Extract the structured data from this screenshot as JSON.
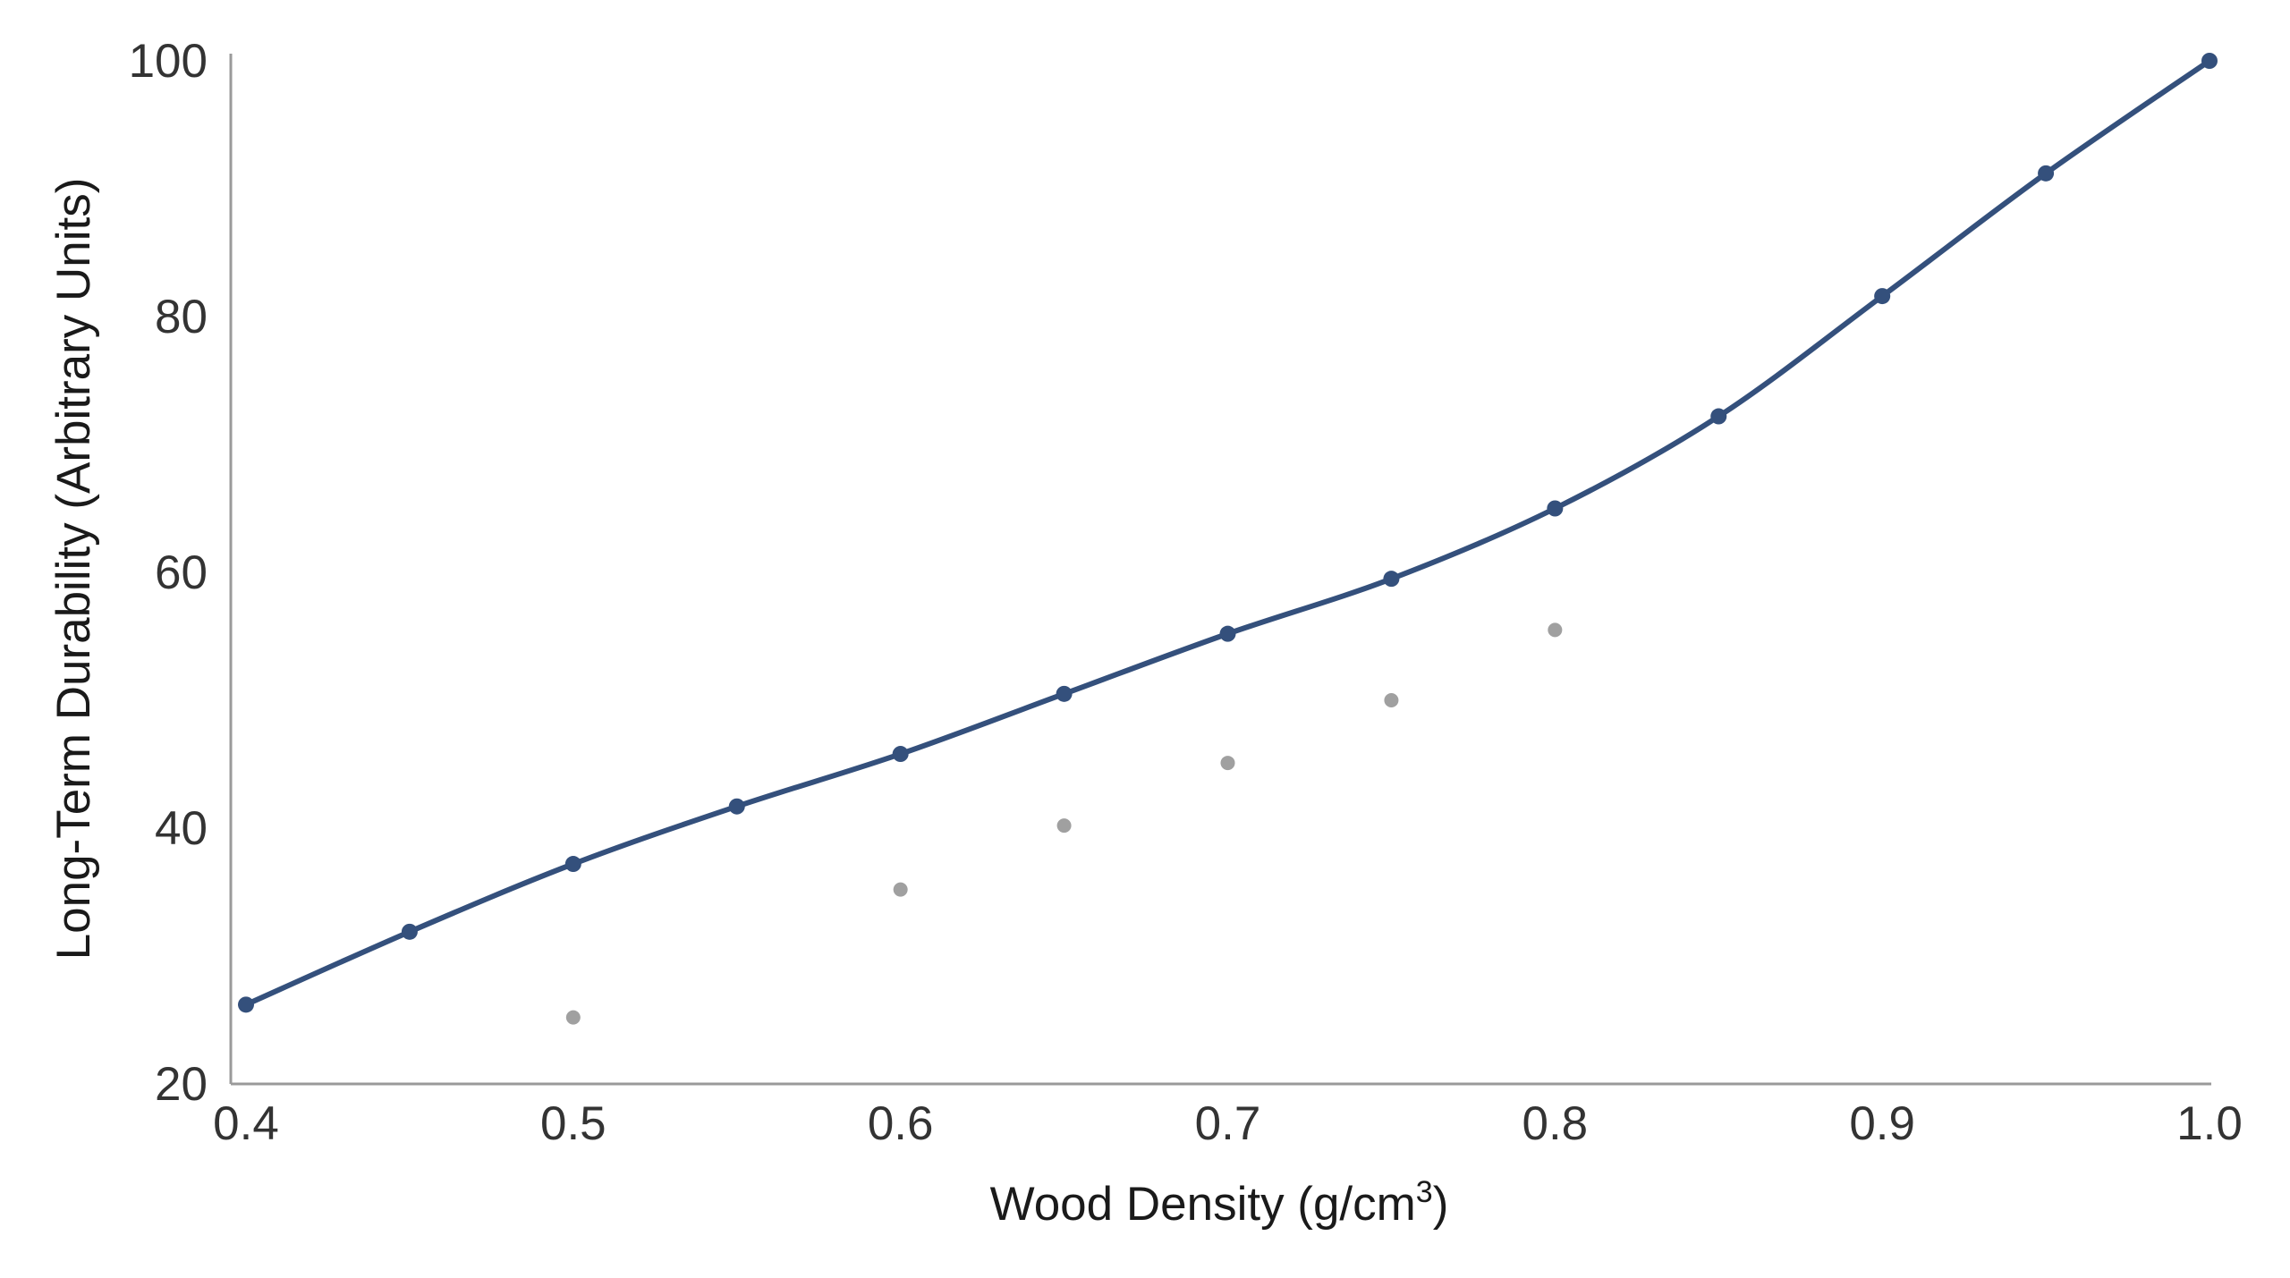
{
  "chart_data": {
    "type": "line",
    "title": "",
    "xlabel": "Wood Density (g/cm",
    "xlabel_sup": "3",
    "xlabel_suffix": ")",
    "ylabel": "Long-Term Durability (Arbitrary Units)",
    "xlim": [
      0.4,
      1.0
    ],
    "ylim": [
      20,
      100
    ],
    "x_ticks": [
      0.4,
      0.5,
      0.6,
      0.7,
      0.8,
      0.9,
      1.0
    ],
    "x_tick_labels": [
      "0.4",
      "0.5",
      "0.6",
      "0.7",
      "0.8",
      "0.9",
      "1.0"
    ],
    "y_ticks": [
      20,
      40,
      60,
      80,
      100
    ],
    "y_tick_labels": [
      "20",
      "40",
      "60",
      "80",
      "100"
    ],
    "grid": false,
    "legend": "none",
    "series": [
      {
        "style": "line-with-markers",
        "color": "#34507c",
        "x": [
          0.4,
          0.45,
          0.5,
          0.55,
          0.6,
          0.65,
          0.7,
          0.75,
          0.8,
          0.85,
          0.9,
          0.95,
          1.0
        ],
        "y": [
          26.2,
          31.9,
          37.2,
          41.7,
          45.8,
          50.5,
          55.2,
          59.5,
          65.0,
          72.2,
          81.6,
          91.2,
          100.0
        ]
      },
      {
        "style": "scatter",
        "color": "#a0a0a0",
        "x": [
          0.5,
          0.6,
          0.65,
          0.7,
          0.75,
          0.8
        ],
        "y": [
          25.2,
          35.2,
          40.2,
          45.1,
          50.0,
          55.5
        ]
      }
    ]
  }
}
